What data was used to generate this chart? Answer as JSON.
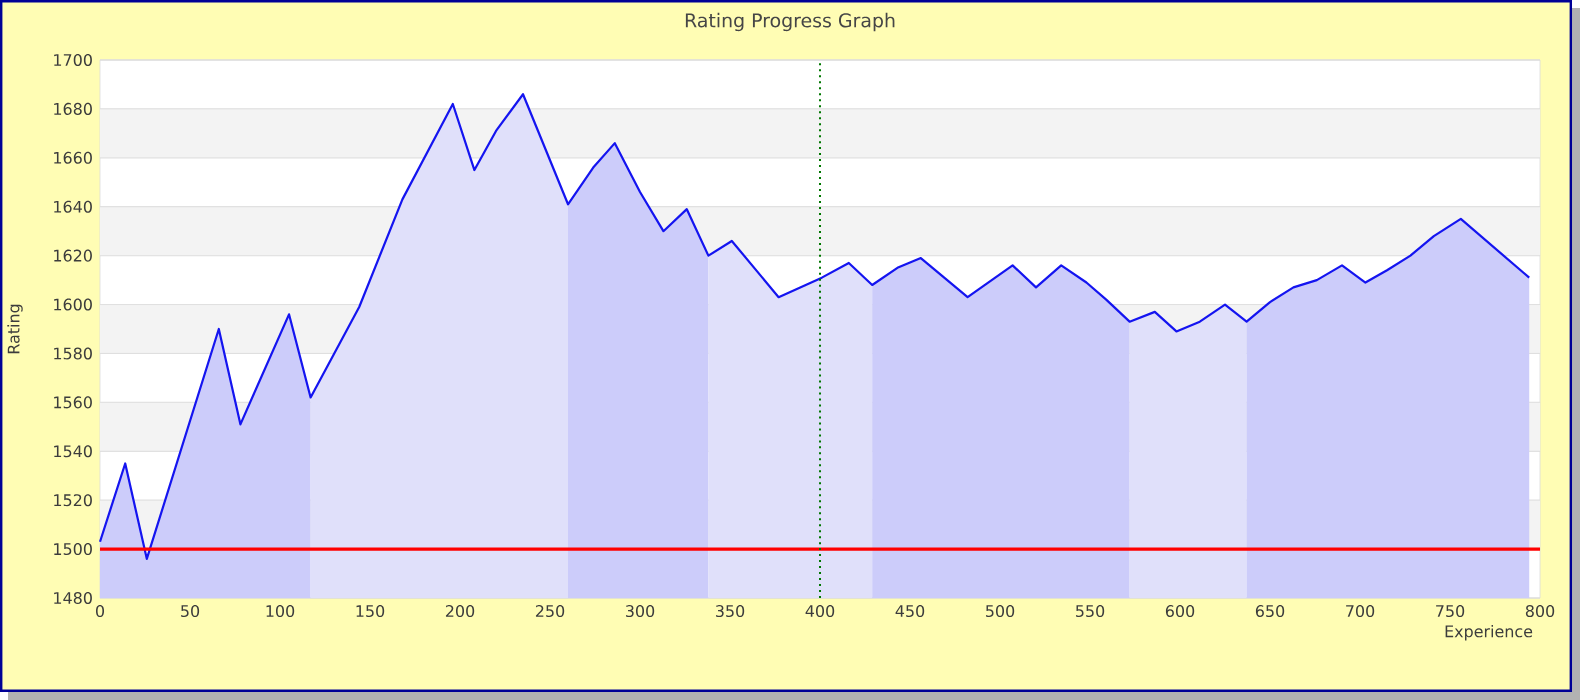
{
  "chart_data": {
    "type": "line",
    "title": "Rating Progress Graph",
    "xlabel": "Experience",
    "ylabel": "Rating",
    "xlim": [
      0,
      800
    ],
    "ylim": [
      1480,
      1700
    ],
    "xticks": [
      0,
      50,
      100,
      150,
      200,
      250,
      300,
      350,
      400,
      450,
      500,
      550,
      600,
      650,
      700,
      750,
      800
    ],
    "yticks": [
      1480,
      1500,
      1520,
      1540,
      1560,
      1580,
      1600,
      1620,
      1640,
      1660,
      1680,
      1700
    ],
    "grid": "y",
    "series": [
      {
        "type": "area",
        "color": "#ccccfa",
        "x": [
          0,
          14,
          26,
          66,
          78,
          105,
          117
        ],
        "values": [
          1503,
          1535,
          1496,
          1590,
          1551,
          1596,
          1562
        ]
      },
      {
        "type": "area",
        "color": "#e0e0fa",
        "x": [
          117,
          144,
          168,
          196,
          208,
          220,
          235,
          260
        ],
        "values": [
          1562,
          1599,
          1643,
          1682,
          1655,
          1671,
          1686,
          1641
        ]
      },
      {
        "type": "area",
        "color": "#ccccfa",
        "x": [
          260,
          274,
          286,
          300,
          313,
          326,
          338
        ],
        "values": [
          1641,
          1656,
          1666,
          1646,
          1630,
          1639,
          1620
        ]
      },
      {
        "type": "area",
        "color": "#e0e0fa",
        "x": [
          338,
          351,
          377,
          401,
          416,
          429
        ],
        "values": [
          1620,
          1626,
          1603,
          1611,
          1617,
          1608
        ]
      },
      {
        "type": "area",
        "color": "#ccccfa",
        "x": [
          429,
          443,
          456,
          482,
          507,
          520,
          534,
          548,
          559,
          572
        ],
        "values": [
          1608,
          1615,
          1619,
          1603,
          1616,
          1607,
          1616,
          1609,
          1602,
          1593
        ]
      },
      {
        "type": "area",
        "color": "#e0e0fa",
        "x": [
          572,
          586,
          598,
          611,
          625,
          637
        ],
        "values": [
          1593,
          1597,
          1589,
          1593,
          1600,
          1593
        ]
      },
      {
        "type": "area",
        "color": "#ccccfa",
        "x": [
          637,
          650,
          663,
          676,
          690,
          703,
          715,
          728,
          741,
          756,
          794
        ],
        "values": [
          1593,
          1601,
          1607,
          1610,
          1616,
          1609,
          1614,
          1620,
          1628,
          1635,
          1611
        ]
      },
      {
        "color": "#1414f0",
        "x": [
          0,
          14,
          26,
          66,
          78,
          105,
          117,
          144,
          168,
          196,
          208,
          220,
          235,
          260,
          274,
          286,
          300,
          313,
          326,
          338,
          351,
          377,
          401,
          416,
          429,
          443,
          456,
          482,
          507,
          520,
          534,
          548,
          559,
          572,
          586,
          598,
          611,
          625,
          637,
          650,
          663,
          676,
          690,
          703,
          715,
          728,
          741,
          756,
          794
        ],
        "values": [
          1503,
          1535,
          1496,
          1590,
          1551,
          1596,
          1562,
          1599,
          1643,
          1682,
          1655,
          1671,
          1686,
          1641,
          1656,
          1666,
          1646,
          1630,
          1639,
          1620,
          1626,
          1603,
          1611,
          1617,
          1608,
          1615,
          1619,
          1603,
          1616,
          1607,
          1616,
          1609,
          1602,
          1593,
          1597,
          1589,
          1593,
          1600,
          1593,
          1601,
          1607,
          1610,
          1616,
          1609,
          1614,
          1620,
          1628,
          1635,
          1611
        ]
      }
    ],
    "ref_lines": [
      {
        "axis": "y",
        "value": 1500,
        "color": "#ff0000",
        "line_style": "solid"
      },
      {
        "axis": "x",
        "value": 400,
        "color": "#007700",
        "line_style": "dotted"
      }
    ]
  }
}
